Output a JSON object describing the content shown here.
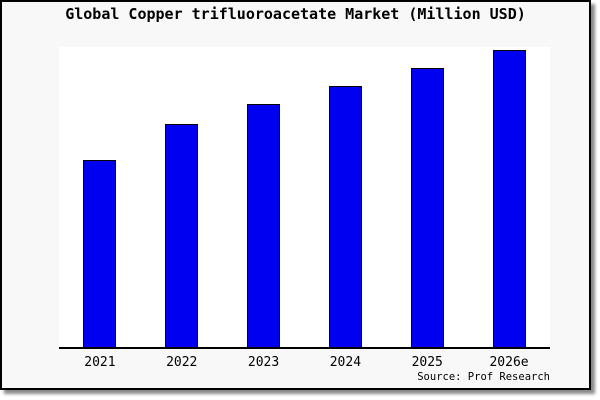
{
  "figure": {
    "title": "Global Copper trifluoroacetate Market (Million USD)",
    "source": "Source: Prof Research",
    "colors": {
      "bar_fill": "#0000f0",
      "bar_border": "#000000",
      "figure_bg": "#f8f8f8",
      "plot_bg": "#ffffff",
      "axis": "#000000"
    }
  },
  "chart_data": {
    "type": "bar",
    "title": "Global Copper trifluoroacetate Market (Million USD)",
    "categories": [
      "2021",
      "2022",
      "2023",
      "2024",
      "2025",
      "2026e"
    ],
    "values": [
      62.3,
      74.5,
      81.1,
      87.1,
      93.0,
      99.0
    ],
    "xlabel": "",
    "ylabel": "",
    "ylim": [
      0,
      100
    ],
    "yaxis_ticks": "none",
    "gridlines": false,
    "legend": false,
    "source": "Source: Prof Research",
    "note": "Y axis is unlabeled in the chart; values are estimated relative bar heights (percent of plot height)."
  }
}
